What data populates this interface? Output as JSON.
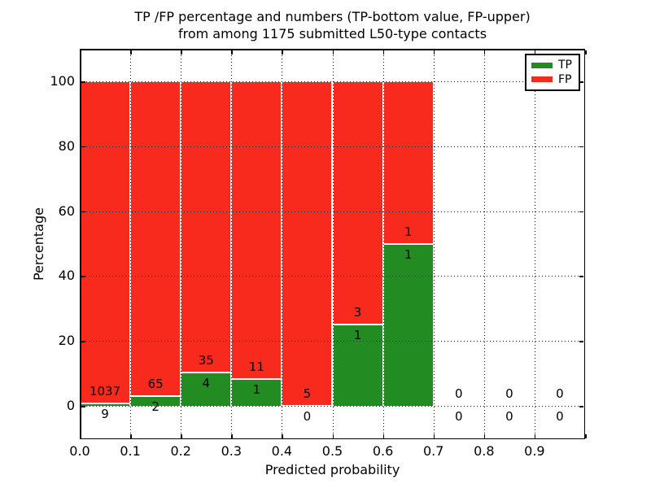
{
  "chart_data": {
    "type": "bar",
    "stacked": true,
    "normalized_to_percent": true,
    "title_line1": "TP /FP percentage and numbers (TP-bottom value, FP-upper)",
    "title_line2": "from among 1175 submitted L50-type contacts",
    "xlabel": "Predicted probability",
    "ylabel": "Percentage",
    "x_ticks": [
      "0.0",
      "0.1",
      "0.2",
      "0.3",
      "0.4",
      "0.5",
      "0.6",
      "0.7",
      "0.8",
      "0.9"
    ],
    "y_ticks": [
      0,
      20,
      40,
      60,
      80,
      100
    ],
    "xlim": [
      0.0,
      1.0
    ],
    "ylim_display": [
      -9,
      110
    ],
    "bin_width": 0.1,
    "grid": "dotted",
    "legend_position": "upper-right",
    "legend": [
      {
        "label": "TP",
        "color": "#228b22"
      },
      {
        "label": "FP",
        "color": "#f8291d"
      }
    ],
    "total_contacts": 1175,
    "bins": [
      {
        "range": [
          0.0,
          0.1
        ],
        "tp": 9,
        "fp": 1037
      },
      {
        "range": [
          0.1,
          0.2
        ],
        "tp": 2,
        "fp": 65
      },
      {
        "range": [
          0.2,
          0.3
        ],
        "tp": 4,
        "fp": 35
      },
      {
        "range": [
          0.3,
          0.4
        ],
        "tp": 1,
        "fp": 11
      },
      {
        "range": [
          0.4,
          0.5
        ],
        "tp": 0,
        "fp": 5
      },
      {
        "range": [
          0.5,
          0.6
        ],
        "tp": 1,
        "fp": 3
      },
      {
        "range": [
          0.6,
          0.7
        ],
        "tp": 1,
        "fp": 1
      },
      {
        "range": [
          0.7,
          0.8
        ],
        "tp": 0,
        "fp": 0
      },
      {
        "range": [
          0.8,
          0.9
        ],
        "tp": 0,
        "fp": 0
      },
      {
        "range": [
          0.9,
          1.0
        ],
        "tp": 0,
        "fp": 0
      }
    ],
    "colors": {
      "tp": "#228b22",
      "fp": "#f8291d",
      "bar_edge": "#ffffff",
      "grid": "#000000",
      "spine": "#000000",
      "background": "#ffffff",
      "text": "#000000"
    }
  }
}
